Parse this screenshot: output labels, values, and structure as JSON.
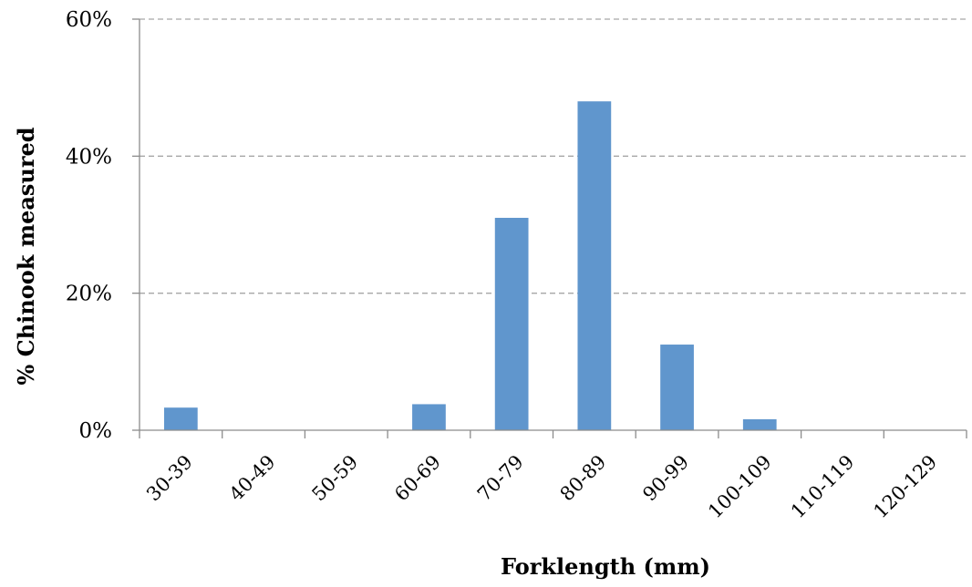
{
  "chart_data": {
    "type": "bar",
    "title": "",
    "xlabel": "Forklength (mm)",
    "ylabel": "% Chinook measured",
    "categories": [
      "30-39",
      "40-49",
      "50-59",
      "60-69",
      "70-79",
      "80-89",
      "90-99",
      "100-109",
      "110-119",
      "120-129"
    ],
    "series": [
      {
        "values": [
          3.3,
          0,
          0,
          3.8,
          31,
          48,
          12.5,
          1.6,
          0,
          0
        ],
        "color": "#6096CD"
      }
    ],
    "ylim": [
      0,
      60
    ],
    "yticks": [
      0,
      20,
      40,
      60
    ],
    "ytick_labels": [
      "0%",
      "20%",
      "40%",
      "60%"
    ],
    "grid": true,
    "grid_style": "dashed",
    "legend": "none"
  }
}
